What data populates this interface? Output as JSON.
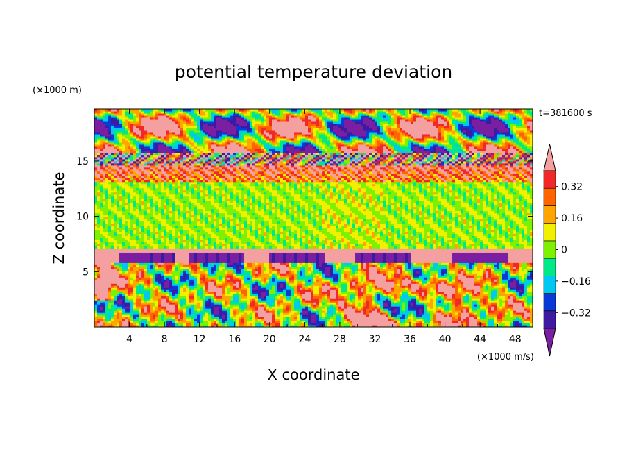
{
  "chart_data": {
    "type": "heatmap",
    "title": "potential temperature deviation",
    "xlabel": "X coordinate",
    "ylabel": "Z coordinate",
    "x_unit": "(×1000 m/s)",
    "y_unit": "(×1000 m)",
    "time_label": "t=381600 s",
    "xlim": [
      0,
      50
    ],
    "ylim": [
      0,
      19.7
    ],
    "x_ticks": [
      4,
      8,
      12,
      16,
      20,
      24,
      28,
      32,
      36,
      40,
      44,
      48
    ],
    "y_ticks": [
      5,
      10,
      15
    ],
    "colorbar": {
      "levels": [
        -0.4,
        -0.32,
        -0.24,
        -0.16,
        -0.08,
        0,
        0.08,
        0.16,
        0.24,
        0.32,
        0.4
      ],
      "labels": [
        "0.32",
        "0.16",
        "0",
        "−0.16",
        "−0.32"
      ],
      "label_values": [
        0.32,
        0.16,
        0,
        -0.16,
        -0.32
      ],
      "colors": [
        "#7a1fa2",
        "#3d1aa0",
        "#0a3ad6",
        "#00c8f0",
        "#00e887",
        "#7ef000",
        "#f0f000",
        "#ffa500",
        "#ff6400",
        "#f02828",
        "#f5a0a0"
      ],
      "extend": "both"
    }
  }
}
